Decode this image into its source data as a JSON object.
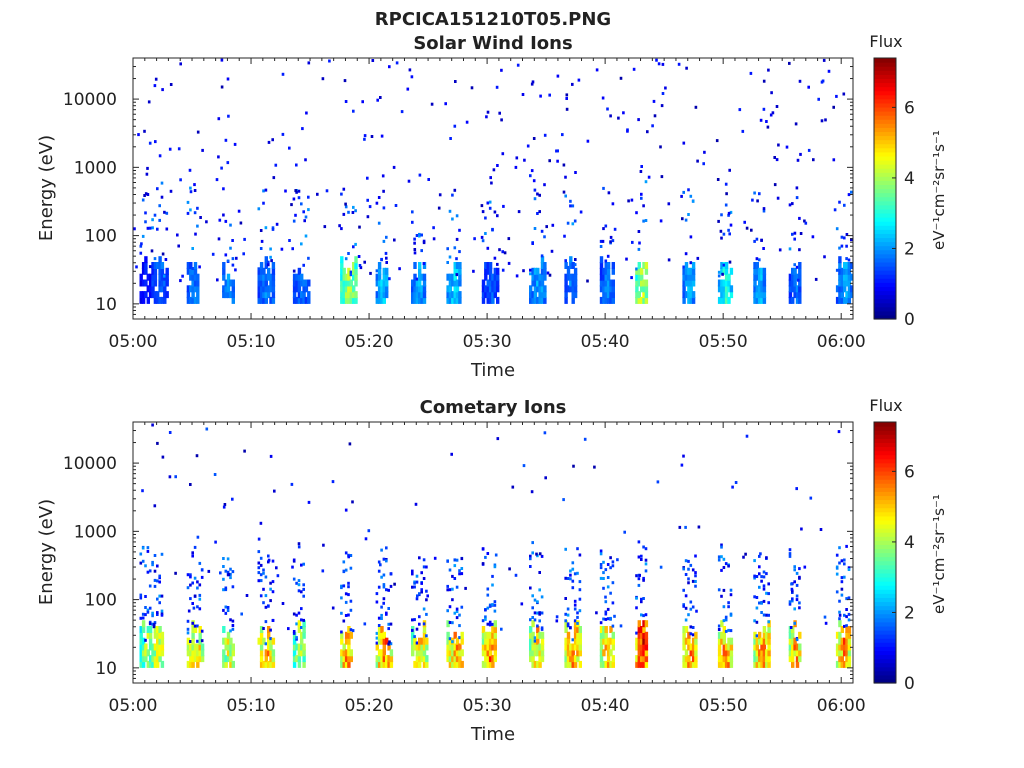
{
  "figure_title": "RPCICA151210T05.PNG",
  "colors": {
    "axis": "#262626",
    "background": "#ffffff"
  },
  "chart_data": [
    {
      "type": "heatmap",
      "title": "Solar Wind Ions",
      "xlabel": "Time",
      "ylabel": "Energy (eV)",
      "x_ticks": [
        "05:00",
        "05:10",
        "05:20",
        "05:30",
        "05:40",
        "05:50",
        "06:00"
      ],
      "xlim": [
        "05:00",
        "06:01"
      ],
      "y_scale": "log",
      "y_ticks": [
        10,
        100,
        1000,
        10000
      ],
      "y_tick_labels": [
        "10",
        "100",
        "1000",
        "10000"
      ],
      "ylim": [
        6,
        40000
      ],
      "colorbar": {
        "label": "Flux",
        "units": "eV⁻¹cm⁻²sr⁻¹s⁻¹",
        "range": [
          0,
          7.4
        ],
        "ticks": [
          "0",
          "2",
          "4",
          "6"
        ],
        "colormap": "jet"
      },
      "bursts": [
        {
          "time": "05:01",
          "flux": 1.2
        },
        {
          "time": "05:02",
          "flux": 1.8
        },
        {
          "time": "05:05",
          "flux": 2.0
        },
        {
          "time": "05:08",
          "flux": 2.1
        },
        {
          "time": "05:11",
          "flux": 2.0
        },
        {
          "time": "05:14",
          "flux": 1.8
        },
        {
          "time": "05:18",
          "flux": 4.2
        },
        {
          "time": "05:21",
          "flux": 2.6
        },
        {
          "time": "05:24",
          "flux": 2.3
        },
        {
          "time": "05:27",
          "flux": 2.6
        },
        {
          "time": "05:30",
          "flux": 1.7
        },
        {
          "time": "05:34",
          "flux": 2.3
        },
        {
          "time": "05:37",
          "flux": 2.0
        },
        {
          "time": "05:40",
          "flux": 2.0
        },
        {
          "time": "05:43",
          "flux": 4.6
        },
        {
          "time": "05:47",
          "flux": 2.4
        },
        {
          "time": "05:50",
          "flux": 3.2
        },
        {
          "time": "05:53",
          "flux": 2.4
        },
        {
          "time": "05:56",
          "flux": 1.9
        },
        {
          "time": "06:00",
          "flux": 2.2
        }
      ]
    },
    {
      "type": "heatmap",
      "title": "Cometary Ions",
      "xlabel": "Time",
      "ylabel": "Energy (eV)",
      "x_ticks": [
        "05:00",
        "05:10",
        "05:20",
        "05:30",
        "05:40",
        "05:50",
        "06:00"
      ],
      "xlim": [
        "05:00",
        "06:01"
      ],
      "y_scale": "log",
      "y_ticks": [
        10,
        100,
        1000,
        10000
      ],
      "y_tick_labels": [
        "10",
        "100",
        "1000",
        "10000"
      ],
      "ylim": [
        6,
        40000
      ],
      "colorbar": {
        "label": "Flux",
        "units": "eV⁻¹cm⁻²sr⁻¹s⁻¹",
        "range": [
          0,
          7.4
        ],
        "ticks": [
          "0",
          "2",
          "4",
          "6"
        ],
        "colormap": "jet"
      },
      "bursts": [
        {
          "time": "05:01",
          "flux": 4.3
        },
        {
          "time": "05:02",
          "flux": 5.0
        },
        {
          "time": "05:05",
          "flux": 5.3
        },
        {
          "time": "05:08",
          "flux": 4.8
        },
        {
          "time": "05:11",
          "flux": 5.7
        },
        {
          "time": "05:14",
          "flux": 4.5
        },
        {
          "time": "05:18",
          "flux": 5.9
        },
        {
          "time": "05:21",
          "flux": 5.9
        },
        {
          "time": "05:24",
          "flux": 5.3
        },
        {
          "time": "05:27",
          "flux": 5.8
        },
        {
          "time": "05:30",
          "flux": 5.8
        },
        {
          "time": "05:34",
          "flux": 5.3
        },
        {
          "time": "05:37",
          "flux": 5.9
        },
        {
          "time": "05:40",
          "flux": 5.7
        },
        {
          "time": "05:43",
          "flux": 7.0
        },
        {
          "time": "05:47",
          "flux": 6.0
        },
        {
          "time": "05:50",
          "flux": 5.9
        },
        {
          "time": "05:53",
          "flux": 5.8
        },
        {
          "time": "05:56",
          "flux": 5.8
        },
        {
          "time": "06:00",
          "flux": 5.9
        }
      ]
    }
  ]
}
